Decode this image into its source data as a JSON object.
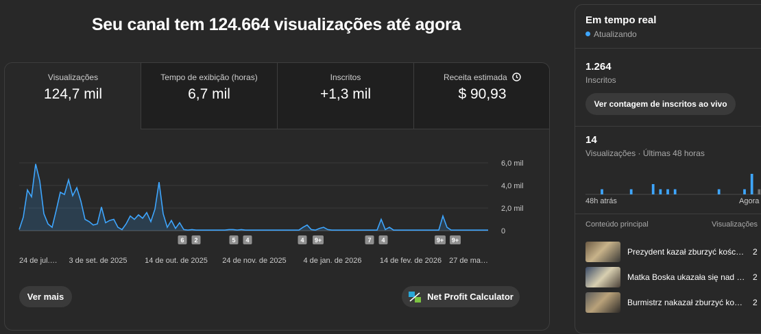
{
  "header": {
    "title": "Seu canal tem 124.664 visualizações até agora"
  },
  "tabs": [
    {
      "label": "Visualizações",
      "value": "124,7 mil"
    },
    {
      "label": "Tempo de exibição (horas)",
      "value": "6,7 mil"
    },
    {
      "label": "Inscritos",
      "value": "+1,3 mil"
    },
    {
      "label": "Receita estimada",
      "value": "$ 90,93"
    }
  ],
  "main_chart": {
    "type": "line",
    "color": "#3ea6ff",
    "grid": true,
    "values": [
      0.1,
      1.2,
      3.6,
      3.0,
      5.9,
      4.4,
      1.5,
      0.6,
      0.3,
      1.8,
      3.4,
      3.2,
      4.5,
      3.1,
      3.8,
      2.6,
      1.0,
      0.8,
      0.5,
      0.6,
      2.1,
      0.7,
      0.9,
      1.0,
      0.3,
      0.1,
      0.6,
      1.3,
      1.0,
      1.4,
      1.1,
      1.6,
      0.8,
      1.9,
      4.3,
      1.5,
      0.3,
      0.9,
      0.2,
      0.7,
      0.1,
      0.05,
      0.1,
      0.05,
      0.05,
      0.05,
      0.05,
      0.05,
      0.05,
      0.05,
      0.05,
      0.1,
      0.1,
      0.05,
      0.1,
      0.05,
      0.05,
      0.05,
      0.05,
      0.05,
      0.05,
      0.05,
      0.05,
      0.05,
      0.05,
      0.05,
      0.05,
      0.05,
      0.05,
      0.3,
      0.5,
      0.1,
      0.05,
      0.2,
      0.3,
      0.1,
      0.05,
      0.05,
      0.05,
      0.05,
      0.05,
      0.05,
      0.05,
      0.05,
      0.05,
      0.05,
      0.05,
      0.05,
      1.0,
      0.1,
      0.3,
      0.05,
      0.05,
      0.05,
      0.05,
      0.05,
      0.05,
      0.05,
      0.05,
      0.05,
      0.05,
      0.05,
      0.05,
      1.3,
      0.3,
      0.05,
      0.05,
      0.05,
      0.05,
      0.05,
      0.05,
      0.05,
      0.05,
      0.05,
      0.05
    ],
    "ylim": [
      0,
      6
    ],
    "yticks": [
      {
        "value": 6,
        "label": "6,0 mil"
      },
      {
        "value": 4,
        "label": "4,0 mil"
      },
      {
        "value": 2,
        "label": "2,0 mil"
      },
      0
    ],
    "x_labels": [
      "24 de jul.…",
      "3 de set. de 2025",
      "14 de out. de 2025",
      "24 de nov. de 2025",
      "4 de jan. de 2026",
      "14 de fev. de 2026",
      "27 de ma…"
    ]
  },
  "annotations": [
    "6",
    "2",
    "5",
    "4",
    "4",
    "9+",
    "7",
    "4",
    "9+",
    "9+"
  ],
  "buttons": {
    "more": "Ver mais",
    "calculator": "Net Profit Calculator"
  },
  "realtime": {
    "title": "Em tempo real",
    "status": "Atualizando",
    "subscribers": {
      "value": "1.264",
      "label": "Inscritos"
    },
    "live_button": "Ver contagem de inscritos ao vivo",
    "views": {
      "value": "14",
      "label": "Visualizações · Últimas 48 horas"
    },
    "chart": {
      "type": "bar",
      "color": "#3ea6ff",
      "last_color": "#717171",
      "values": [
        0,
        0,
        0,
        0,
        1,
        0,
        0,
        0,
        0,
        0,
        0,
        0,
        1,
        0,
        0,
        0,
        0,
        0,
        2,
        0,
        1,
        0,
        1,
        0,
        1,
        0,
        0,
        0,
        0,
        0,
        0,
        0,
        0,
        0,
        0,
        0,
        1,
        0,
        0,
        0,
        0,
        0,
        0,
        1,
        0,
        4,
        0,
        1
      ]
    },
    "start_label": "48h atrás",
    "end_label": "Agora",
    "top_content": {
      "title": "Conteúdo principal",
      "column": "Visualizações",
      "rows": [
        {
          "title": "Prezydent kazał zburzyć kośc…",
          "views": "2"
        },
        {
          "title": "Matka Boska ukazała się nad …",
          "views": "2"
        },
        {
          "title": "Burmistrz nakazał zburzyć ko…",
          "views": "2"
        }
      ]
    }
  }
}
